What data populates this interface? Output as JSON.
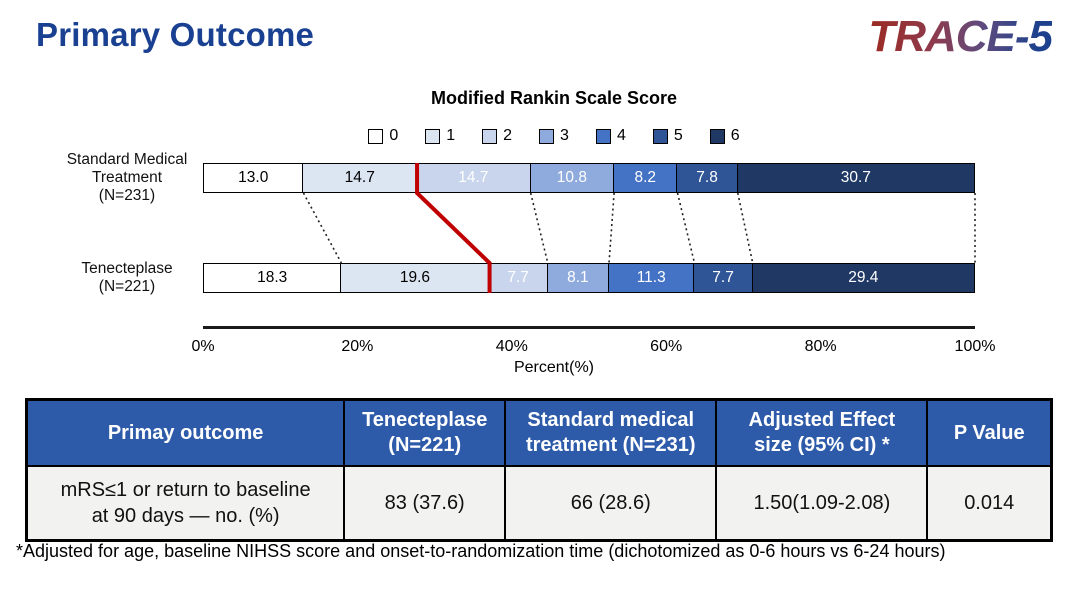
{
  "header": {
    "title": "Primary Outcome",
    "logo": "TRACE-5"
  },
  "chart_data": {
    "type": "bar",
    "variant": "horizontal-stacked",
    "title": "Modified Rankin Scale Score",
    "xlabel": "Percent(%)",
    "x_ticks": [
      "0%",
      "20%",
      "40%",
      "60%",
      "80%",
      "100%"
    ],
    "xlim": [
      0,
      100
    ],
    "legend": [
      "0",
      "1",
      "2",
      "3",
      "4",
      "5",
      "6"
    ],
    "legend_position": "top-center",
    "segment_colors": [
      "#FFFFFF",
      "#DCE5F2",
      "#C8D5EC",
      "#8FAADC",
      "#4472C4",
      "#2F5597",
      "#1F3864"
    ],
    "highlight_divider_after": 1,
    "highlight_color": "#C00000",
    "connector_style": "dotted",
    "series": [
      {
        "name": "Standard Medical Treatment",
        "label": "Standard Medical\nTreatment\n(N=231)",
        "values": [
          13.0,
          14.7,
          14.7,
          10.8,
          8.2,
          7.8,
          30.7
        ]
      },
      {
        "name": "Tenecteplase",
        "label": "Tenecteplase\n(N=221)",
        "values": [
          18.3,
          19.6,
          7.7,
          8.1,
          11.3,
          7.7,
          29.4
        ]
      }
    ]
  },
  "table": {
    "header_bg": "#2E5BA9",
    "row_bg": "#F2F2F0",
    "headers": [
      "Primay outcome",
      "Tenecteplase\n(N=221)",
      "Standard medical\ntreatment (N=231)",
      "Adjusted Effect\nsize (95% CI) *",
      "P Value"
    ],
    "rows": [
      [
        "mRS≤1 or return to baseline\nat 90 days — no. (%)",
        "83 (37.6)",
        "66 (28.6)",
        "1.50(1.09-2.08)",
        "0.014"
      ]
    ]
  },
  "footnote": "*Adjusted for age, baseline NIHSS score and onset-to-randomization time (dichotomized as 0-6 hours vs 6-24 hours)"
}
